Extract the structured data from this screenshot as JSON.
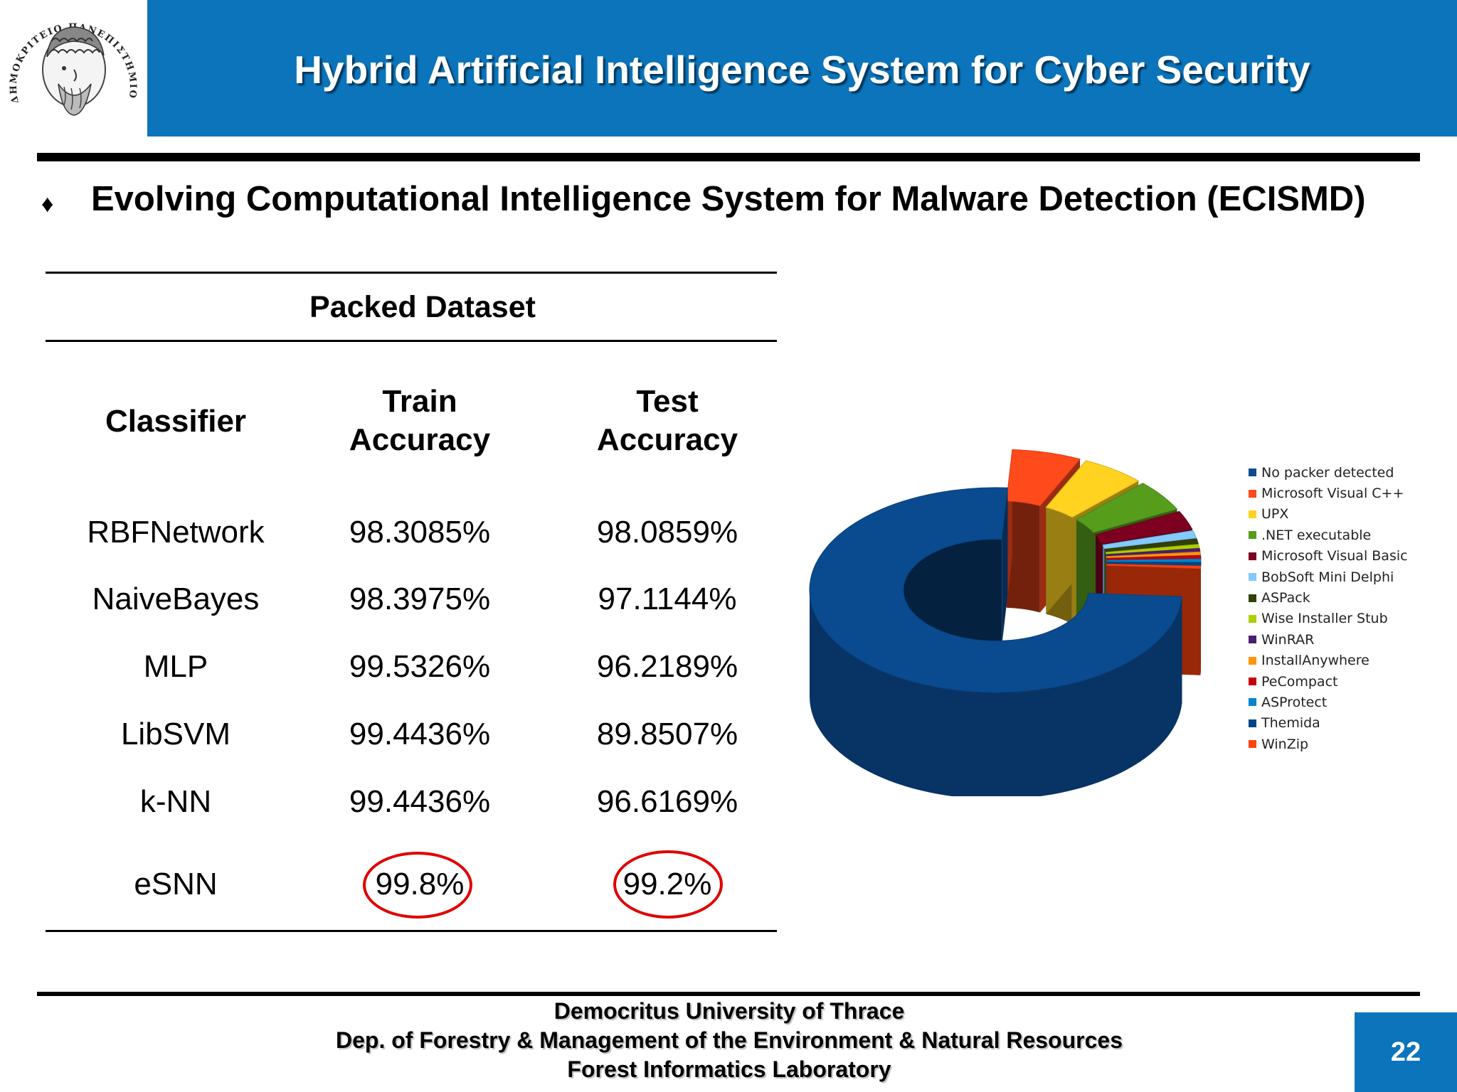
{
  "header": {
    "title": "Hybrid Artificial Intelligence System for Cyber Security",
    "logo_text": "ΔΗΜΟΚΡΙΤΕΙΟ ΠΑΝΕΠΙΣΤΗΜΙΟ ΘΡΑΚΗΣ"
  },
  "subtitle": {
    "bullet": "♦",
    "text": "Evolving Computational Intelligence System for Malware Detection (ECISMD)"
  },
  "table": {
    "title": "Packed Dataset",
    "headers": {
      "classifier": "Classifier",
      "train_line1": "Train",
      "train_line2": "Accuracy",
      "test_line1": "Test",
      "test_line2": "Accuracy"
    },
    "rows": [
      {
        "classifier": "RBFNetwork",
        "train": "98.3085%",
        "test": "98.0859%"
      },
      {
        "classifier": "NaiveBayes",
        "train": "98.3975%",
        "test": "97.1144%"
      },
      {
        "classifier": "MLP",
        "train": "99.5326%",
        "test": "96.2189%"
      },
      {
        "classifier": "LibSVM",
        "train": "99.4436%",
        "test": "89.8507%"
      },
      {
        "classifier": "k-NN",
        "train": "99.4436%",
        "test": "96.6169%"
      },
      {
        "classifier": "eSNN",
        "train": "99.8%",
        "test": "99.2%"
      }
    ],
    "highlight_color": "#e00000"
  },
  "chart_data": {
    "type": "pie",
    "style": "3d-donut-exploded",
    "title": "",
    "legend_position": "right",
    "labels": [
      "No packer detected",
      "Microsoft Visual C++",
      "UPX",
      ".NET executable",
      "Microsoft Visual Basic",
      "BobSoft Mini Delphi",
      "ASPack",
      "Wise Installer Stub",
      "WinRAR",
      "InstallAnywhere",
      "PeCompact",
      "ASProtect",
      "Themida",
      "WinZip"
    ],
    "values": [
      75.0,
      6.0,
      5.5,
      5.0,
      3.0,
      1.2,
      0.8,
      0.6,
      0.5,
      0.5,
      0.5,
      0.5,
      0.5,
      0.4
    ],
    "colors": [
      "#0a4a8f",
      "#ff4a1c",
      "#ffd320",
      "#579d1c",
      "#7e0021",
      "#83caff",
      "#314004",
      "#aecf00",
      "#4b1f6f",
      "#ff950e",
      "#c5000b",
      "#0084d1",
      "#004586",
      "#ff420e"
    ]
  },
  "footer": {
    "line1": "Democritus University of Thrace",
    "line2": "Dep. of Forestry & Management of the Environment & Natural Resources",
    "line3": "Forest Informatics Laboratory",
    "page_number": "22"
  }
}
